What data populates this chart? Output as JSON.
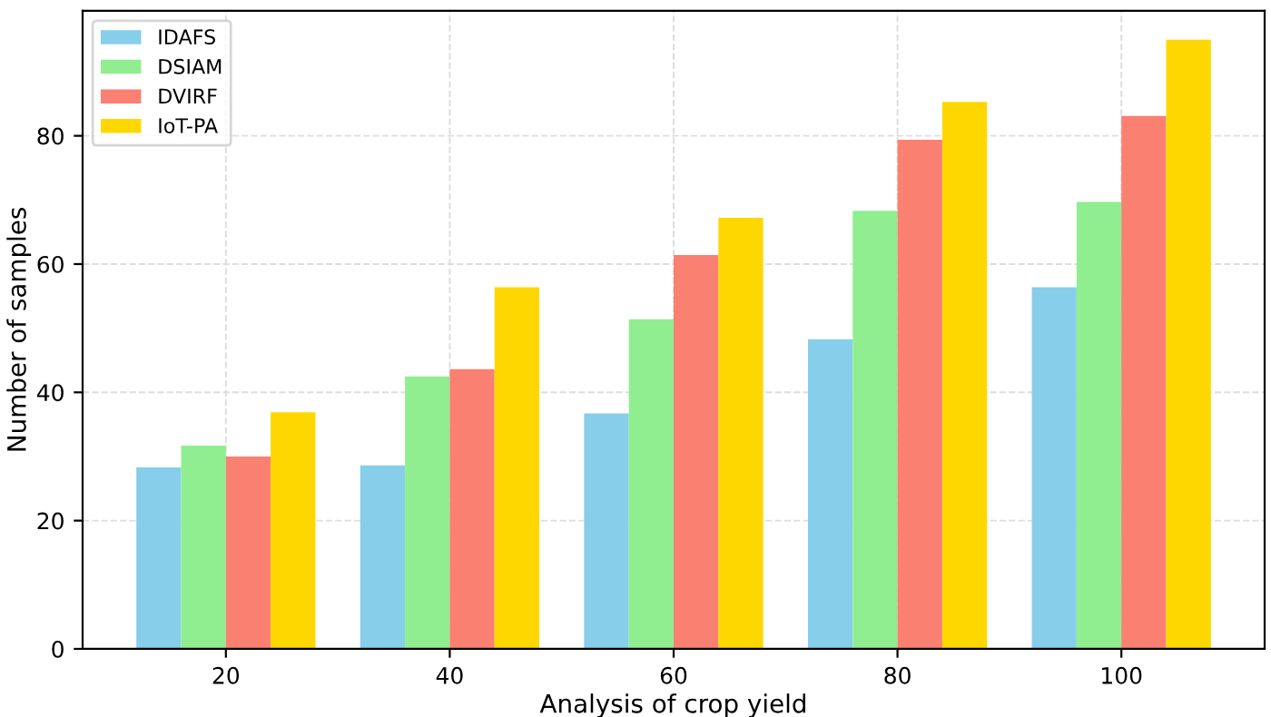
{
  "chart_data": {
    "type": "bar",
    "xlabel": "Analysis of crop yield",
    "ylabel": "Number of samples",
    "categories": [
      "20",
      "40",
      "60",
      "80",
      "100"
    ],
    "series": [
      {
        "name": "IDAFS",
        "color": "#87ceeb",
        "values": [
          28.3,
          28.6,
          36.7,
          48.3,
          56.4
        ]
      },
      {
        "name": "DSIAM",
        "color": "#90ee90",
        "values": [
          31.7,
          42.5,
          51.4,
          68.3,
          69.7
        ]
      },
      {
        "name": "DVIRF",
        "color": "#fa8072",
        "values": [
          30.0,
          43.6,
          61.4,
          79.4,
          83.1
        ]
      },
      {
        "name": "IoT-PA",
        "color": "#ffd700",
        "values": [
          36.9,
          56.4,
          67.2,
          85.3,
          95.0
        ]
      }
    ],
    "ylim": [
      0,
      99.5
    ],
    "yticks": [
      0,
      20,
      40,
      60,
      80
    ],
    "grid": true,
    "legend": "top left"
  }
}
